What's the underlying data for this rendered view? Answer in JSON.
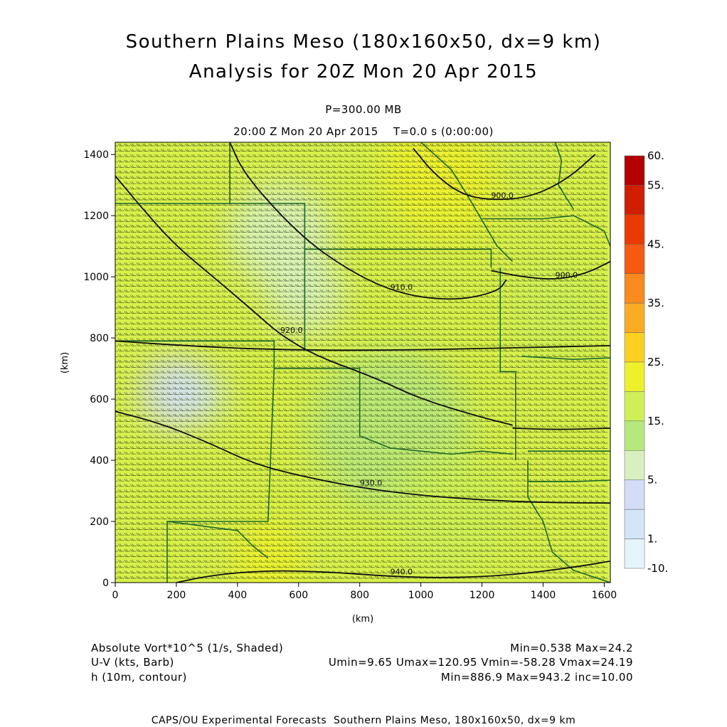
{
  "header": {
    "title_line1": "Southern Plains Meso (180x160x50, dx=9 km)",
    "title_line2": "Analysis for 20Z Mon 20 Apr 2015",
    "level": "P=300.00 MB",
    "time_line": "20:00 Z Mon 20 Apr 2015    T=0.0 s (0:00:00)"
  },
  "legend_text": {
    "shade_label": "Absolute Vort*10^5 (1/s, Shaded)",
    "shade_stats": "Min=0.538 Max=24.2",
    "barb_label": "U-V (kts, Barb)",
    "barb_stats": "Umin=9.65 Umax=120.95 Vmin=-58.28 Vmax=24.19",
    "contour_label": "h (10m, contour)",
    "contour_stats": "Min=886.9 Max=943.2 inc=10.00"
  },
  "footer": "CAPS/OU Experimental Forecasts  Southern Plains Meso, 180x160x50, dx=9 km",
  "chart_data": {
    "type": "heatmap",
    "field": "Absolute Vort*10^5 (1/s, Shaded)",
    "xlabel": "(km)",
    "ylabel": "(km)",
    "xlim": [
      0,
      1620
    ],
    "ylim": [
      0,
      1440
    ],
    "xticks": [
      0,
      200,
      400,
      600,
      800,
      1000,
      1200,
      1400,
      1600
    ],
    "yticks": [
      0,
      200,
      400,
      600,
      800,
      1000,
      1200,
      1400
    ],
    "colorbar": {
      "labels": [
        "60.",
        "55.",
        "45.",
        "35.",
        "25.",
        "15.",
        "5.",
        "1.",
        "-10."
      ],
      "colors": [
        "#b40000",
        "#d21e00",
        "#ea3a00",
        "#f45a10",
        "#f98a1e",
        "#fbac22",
        "#fed020",
        "#eef02c",
        "#cef056",
        "#b6e87c",
        "#d8f0c0",
        "#d4dcf8",
        "#d2e6f8",
        "#e4f4fa"
      ]
    },
    "contours": [
      {
        "label": "900.0",
        "points": [
          [
            975,
            1420
          ],
          [
            1040,
            1340
          ],
          [
            1130,
            1270
          ],
          [
            1230,
            1250
          ],
          [
            1360,
            1260
          ],
          [
            1480,
            1320
          ],
          [
            1570,
            1400
          ]
        ]
      },
      {
        "label": "900.0",
        "points": [
          [
            1230,
            1020
          ],
          [
            1330,
            1000
          ],
          [
            1440,
            990
          ],
          [
            1540,
            1010
          ],
          [
            1620,
            1050
          ]
        ]
      },
      {
        "label": "910.0",
        "points": [
          [
            375,
            1440
          ],
          [
            420,
            1340
          ],
          [
            560,
            1180
          ],
          [
            700,
            1060
          ],
          [
            900,
            950
          ],
          [
            1100,
            920
          ],
          [
            1250,
            950
          ],
          [
            1280,
            990
          ]
        ]
      },
      {
        "label": "920.0",
        "points": [
          [
            0,
            1330
          ],
          [
            100,
            1210
          ],
          [
            200,
            1100
          ],
          [
            320,
            1000
          ],
          [
            450,
            890
          ],
          [
            540,
            810
          ],
          [
            660,
            740
          ],
          [
            850,
            670
          ],
          [
            1000,
            600
          ],
          [
            1200,
            540
          ],
          [
            1300,
            515
          ]
        ]
      },
      {
        "label": "930.0",
        "points": [
          [
            0,
            560
          ],
          [
            150,
            520
          ],
          [
            300,
            460
          ],
          [
            450,
            390
          ],
          [
            600,
            350
          ],
          [
            800,
            310
          ],
          [
            1000,
            285
          ],
          [
            1200,
            270
          ],
          [
            1400,
            262
          ],
          [
            1620,
            260
          ]
        ]
      },
      {
        "label": "940.0",
        "points": [
          [
            200,
            0
          ],
          [
            320,
            25
          ],
          [
            500,
            40
          ],
          [
            700,
            35
          ],
          [
            900,
            20
          ],
          [
            1100,
            15
          ],
          [
            1300,
            25
          ],
          [
            1500,
            50
          ],
          [
            1620,
            70
          ]
        ]
      },
      {
        "label": "",
        "points": [
          [
            0,
            790
          ],
          [
            300,
            770
          ],
          [
            600,
            760
          ],
          [
            900,
            760
          ],
          [
            1200,
            765
          ],
          [
            1620,
            775
          ]
        ]
      },
      {
        "label": "",
        "points": [
          [
            1300,
            505
          ],
          [
            1450,
            500
          ],
          [
            1620,
            505
          ]
        ]
      }
    ],
    "shading": [
      {
        "cx": 1070,
        "cy": 1300,
        "r": 180,
        "value": 24
      },
      {
        "cx": 1000,
        "cy": 1380,
        "r": 120,
        "value": 22
      },
      {
        "cx": 540,
        "cy": 1140,
        "r": 170,
        "value": 8
      },
      {
        "cx": 620,
        "cy": 940,
        "r": 130,
        "value": 9
      },
      {
        "cx": 200,
        "cy": 620,
        "r": 120,
        "value": 4
      },
      {
        "cx": 300,
        "cy": 610,
        "r": 60,
        "value": 1.5
      },
      {
        "cx": 220,
        "cy": 640,
        "r": 45,
        "value": 1.5
      },
      {
        "cx": 900,
        "cy": 500,
        "r": 260,
        "value": 13
      },
      {
        "cx": 500,
        "cy": 80,
        "r": 120,
        "value": 20
      },
      {
        "cx": 1100,
        "cy": 230,
        "r": 200,
        "value": 15
      },
      {
        "cx": 1450,
        "cy": 900,
        "r": 160,
        "value": 16
      }
    ],
    "wind_barbs": {
      "u_range": [
        9.65,
        120.95
      ],
      "v_range": [
        -58.28,
        24.19
      ],
      "predominant": "westerly"
    },
    "map_overlay": "state boundaries (Southern Plains)"
  }
}
